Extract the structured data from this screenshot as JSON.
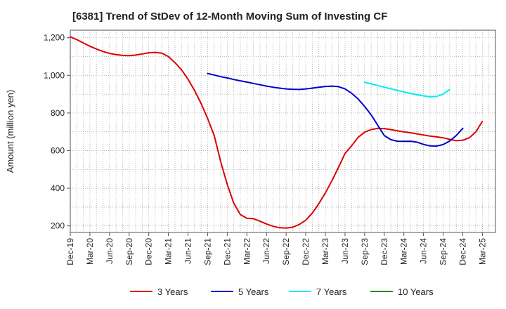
{
  "chart_data": {
    "type": "line",
    "title": "[6381]  Trend of StDev of 12-Month Moving Sum of Investing CF",
    "xlabel": "",
    "ylabel": "Amount (million yen)",
    "ylim": [
      165,
      1240
    ],
    "yticks": [
      200,
      400,
      600,
      800,
      "1,000",
      "1,200"
    ],
    "ytick_values": [
      200,
      400,
      600,
      800,
      1000,
      1200
    ],
    "xticks": [
      "Dec-19",
      "Mar-20",
      "Jun-20",
      "Sep-20",
      "Dec-20",
      "Mar-21",
      "Jun-21",
      "Sep-21",
      "Dec-21",
      "Mar-22",
      "Jun-22",
      "Sep-22",
      "Dec-22",
      "Mar-23",
      "Jun-23",
      "Sep-23",
      "Dec-23",
      "Mar-24",
      "Jun-24",
      "Sep-24",
      "Dec-24",
      "Mar-25"
    ],
    "grid": true,
    "legend_position": "bottom",
    "series": [
      {
        "name": "3 Years",
        "color": "#dd0000",
        "start_index": 0,
        "values": [
          1205,
          1190,
          1172,
          1155,
          1140,
          1127,
          1117,
          1110,
          1106,
          1105,
          1108,
          1114,
          1120,
          1122,
          1118,
          1100,
          1068,
          1030,
          980,
          920,
          850,
          770,
          680,
          540,
          420,
          320,
          260,
          240,
          238,
          225,
          210,
          198,
          190,
          188,
          193,
          207,
          230,
          268,
          318,
          375,
          440,
          510,
          585,
          625,
          670,
          698,
          712,
          718,
          717,
          712,
          705,
          700,
          695,
          689,
          683,
          677,
          673,
          668,
          660,
          653,
          655,
          668,
          700,
          755
        ]
      },
      {
        "name": "5 Years",
        "color": "#0000cc",
        "start_index": 21,
        "values": [
          1010,
          1002,
          993,
          986,
          978,
          971,
          964,
          957,
          950,
          943,
          937,
          932,
          928,
          926,
          925,
          928,
          932,
          937,
          941,
          943,
          940,
          928,
          905,
          875,
          835,
          790,
          735,
          680,
          658,
          650,
          649,
          650,
          645,
          633,
          625,
          624,
          632,
          651,
          680,
          718
        ]
      },
      {
        "name": "7 Years",
        "color": "#00eeee",
        "start_index": 45,
        "values": [
          963,
          955,
          946,
          937,
          929,
          920,
          912,
          904,
          897,
          891,
          886,
          888,
          900,
          925
        ]
      },
      {
        "name": "10 Years",
        "color": "#228822",
        "start_index": 0,
        "values": []
      }
    ]
  }
}
